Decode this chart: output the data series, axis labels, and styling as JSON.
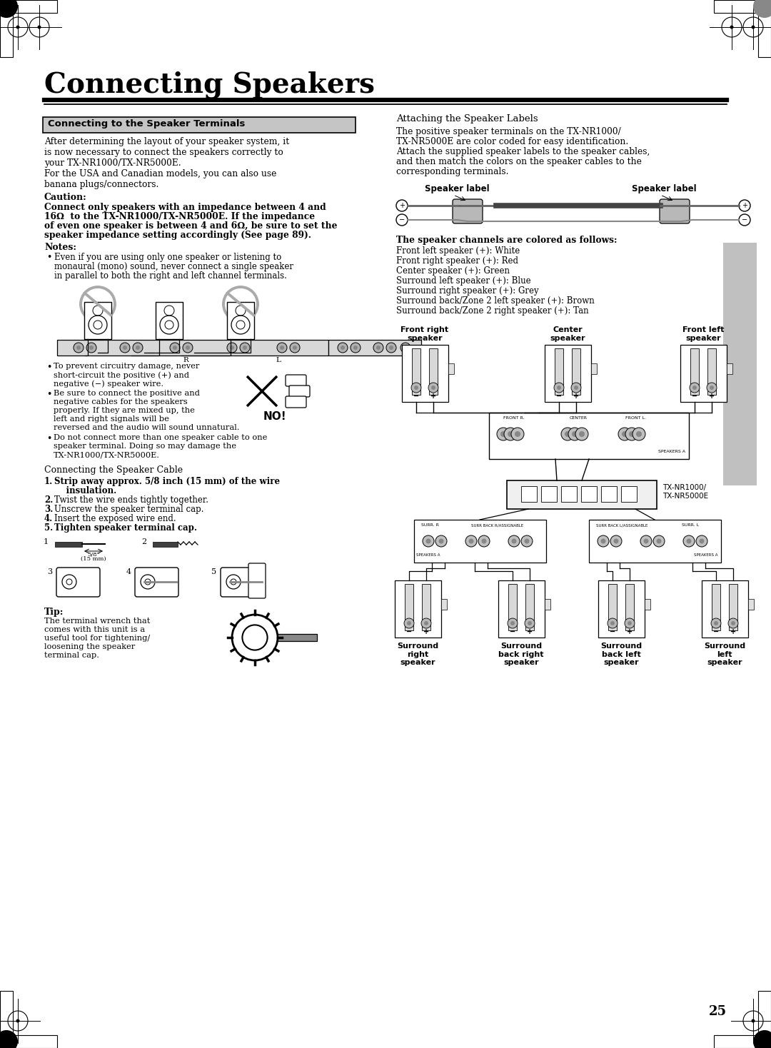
{
  "title": "Connecting Speakers",
  "page_bg": "#ffffff",
  "page_number": "25",
  "section1_box_title": "Connecting to the Speaker Terminals",
  "para1_lines": [
    "After determining the layout of your speaker system, it",
    "is now necessary to connect the speakers correctly to",
    "your TX-NR1000/TX-NR5000E.",
    "For the USA and Canadian models, you can also use",
    "banana plugs/connectors."
  ],
  "caution_header": "Caution:",
  "caution_bold_lines": [
    "Connect only speakers with an impedance between 4 and",
    "16Ω  to the TX-NR1000/TX-NR5000E. If the impedance",
    "of even one speaker is between 4 and 6Ω, be sure to set the",
    "speaker impedance setting accordingly (See page 89)."
  ],
  "notes_header": "Notes:",
  "note1_lines": [
    "Even if you are using only one speaker or listening to",
    "monaural (mono) sound, never connect a single speaker",
    "in parallel to both the right and left channel terminals."
  ],
  "bullet1_lines": [
    "To prevent circuitry damage, never",
    "short-circuit the positive (+) and",
    "negative (−) speaker wire."
  ],
  "bullet2_lines": [
    "Be sure to connect the positive and",
    "negative cables for the speakers",
    "properly. If they are mixed up, the",
    "left and right signals will be",
    "reversed and the audio will sound unnatural."
  ],
  "bullet3_lines": [
    "Do not connect more than one speaker cable to one",
    "speaker terminal. Doing so may damage the",
    "TX-NR1000/TX-NR5000E."
  ],
  "no_label": "NO!",
  "cable_title": "Connecting the Speaker Cable",
  "steps_bold": [
    0,
    4
  ],
  "steps": [
    "Strip away approx. 5/8 inch (15 mm) of the wire",
    "    insulation.",
    "Twist the wire ends tightly together.",
    "Unscrew the speaker terminal cap.",
    "Insert the exposed wire end.",
    "Tighten speaker terminal cap."
  ],
  "tip_header": "Tip:",
  "tip_lines": [
    "The terminal wrench that",
    "comes with this unit is a",
    "useful tool for tightening/",
    "loosening the speaker",
    "terminal cap."
  ],
  "attach_title": "Attaching the Speaker Labels",
  "attach_lines": [
    "The positive speaker terminals on the TX-NR1000/",
    "TX-NR5000E are color coded for easy identification.",
    "Attach the supplied speaker labels to the speaker cables,",
    "and then match the colors on the speaker cables to the",
    "corresponding terminals."
  ],
  "spk_label": "Speaker label",
  "channels_header": "The speaker channels are colored as follows:",
  "channels": [
    "Front left speaker (+): White",
    "Front right speaker (+): Red",
    "Center speaker (+): Green",
    "Surround left speaker (+): Blue",
    "Surround right speaker (+): Grey",
    "Surround back/Zone 2 left speaker (+): Brown",
    "Surround back/Zone 2 right speaker (+): Tan"
  ]
}
